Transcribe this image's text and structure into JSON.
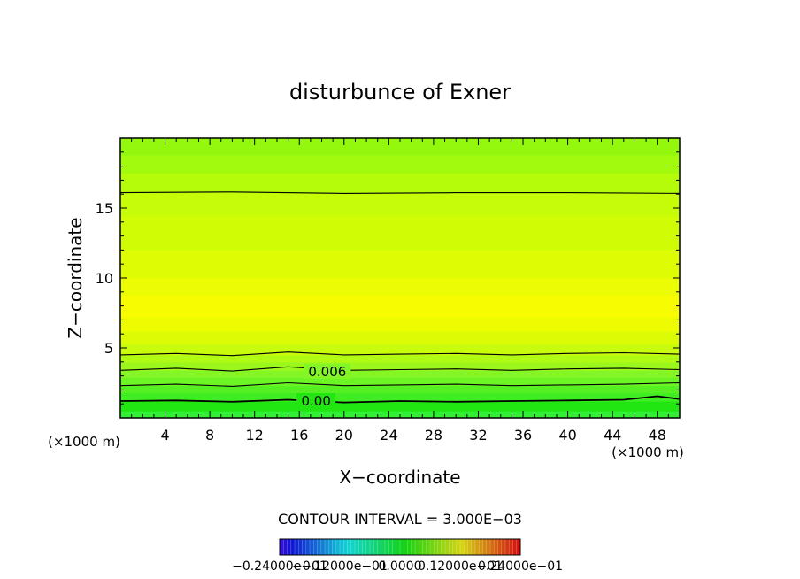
{
  "chart_data": {
    "type": "heatmap",
    "title": "disturbunce of Exner",
    "xlabel": "X−coordinate",
    "ylabel": "Z−coordinate",
    "x_unit": "(×1000 m)",
    "y_unit": "(×1000 m)",
    "xlim": [
      0,
      50
    ],
    "ylim": [
      0,
      20
    ],
    "x_ticks": [
      4,
      8,
      12,
      16,
      20,
      24,
      28,
      32,
      36,
      40,
      44,
      48
    ],
    "y_ticks": [
      5,
      10,
      15
    ],
    "contour_interval_label": "CONTOUR INTERVAL = 3.000E−03",
    "colorbar_labels": [
      "−0.24000e−01",
      "−0.12000e−01",
      "0.0000",
      "0.12000e−01",
      "0.24000e−01"
    ],
    "colorbar_range": [
      -0.024,
      0.024
    ],
    "contour_labels": [
      {
        "text": "0.006",
        "x": 18.5,
        "z": 3.3
      },
      {
        "text": "0.00",
        "x": 17.5,
        "z": 1.2
      }
    ],
    "contours": [
      {
        "level": 0.0,
        "x": [
          0,
          5,
          10,
          15,
          20,
          25,
          30,
          35,
          40,
          45,
          48,
          50
        ],
        "z": [
          1.2,
          1.25,
          1.15,
          1.3,
          1.1,
          1.2,
          1.15,
          1.2,
          1.25,
          1.3,
          1.55,
          1.35
        ]
      },
      {
        "level": 0.003,
        "x": [
          0,
          5,
          10,
          15,
          20,
          25,
          30,
          35,
          40,
          45,
          50
        ],
        "z": [
          2.3,
          2.4,
          2.25,
          2.5,
          2.3,
          2.35,
          2.4,
          2.3,
          2.35,
          2.4,
          2.5
        ]
      },
      {
        "level": 0.006,
        "x": [
          0,
          5,
          10,
          15,
          20,
          25,
          30,
          35,
          40,
          45,
          50
        ],
        "z": [
          3.4,
          3.55,
          3.35,
          3.65,
          3.4,
          3.45,
          3.5,
          3.4,
          3.5,
          3.55,
          3.45
        ]
      },
      {
        "level": 0.009,
        "x": [
          0,
          5,
          10,
          15,
          20,
          25,
          30,
          35,
          40,
          45,
          50
        ],
        "z": [
          4.5,
          4.6,
          4.45,
          4.7,
          4.5,
          4.55,
          4.6,
          4.5,
          4.6,
          4.65,
          4.55
        ]
      },
      {
        "level": 0.009,
        "x": [
          0,
          10,
          20,
          30,
          40,
          50
        ],
        "z": [
          16.1,
          16.15,
          16.05,
          16.1,
          16.1,
          16.05
        ]
      }
    ],
    "bands": [
      {
        "z0": 0.0,
        "z1": 0.5,
        "color": "#33ee33"
      },
      {
        "z0": 0.5,
        "z1": 1.2,
        "color": "#22e611"
      },
      {
        "z0": 1.2,
        "z1": 1.8,
        "color": "#3fee22"
      },
      {
        "z0": 1.8,
        "z1": 2.3,
        "color": "#55f022"
      },
      {
        "z0": 2.3,
        "z1": 2.9,
        "color": "#6cf425"
      },
      {
        "z0": 2.9,
        "z1": 3.4,
        "color": "#84f626"
      },
      {
        "z0": 3.4,
        "z1": 4.0,
        "color": "#9cf81c"
      },
      {
        "z0": 4.0,
        "z1": 4.5,
        "color": "#b0fa14"
      },
      {
        "z0": 4.5,
        "z1": 5.3,
        "color": "#c8fb0c"
      },
      {
        "z0": 5.3,
        "z1": 6.2,
        "color": "#dcfc06"
      },
      {
        "z0": 6.2,
        "z1": 7.2,
        "color": "#eefc02"
      },
      {
        "z0": 7.2,
        "z1": 8.8,
        "color": "#f8fc00"
      },
      {
        "z0": 8.8,
        "z1": 10.0,
        "color": "#ecfc02"
      },
      {
        "z0": 10.0,
        "z1": 12.0,
        "color": "#defc04"
      },
      {
        "z0": 12.0,
        "z1": 14.5,
        "color": "#d0fc06"
      },
      {
        "z0": 14.5,
        "z1": 16.1,
        "color": "#c6fc08"
      },
      {
        "z0": 16.1,
        "z1": 17.5,
        "color": "#b4fc0a"
      },
      {
        "z0": 17.5,
        "z1": 18.8,
        "color": "#a2fa0c"
      },
      {
        "z0": 18.8,
        "z1": 20.0,
        "color": "#94f80e"
      }
    ]
  }
}
